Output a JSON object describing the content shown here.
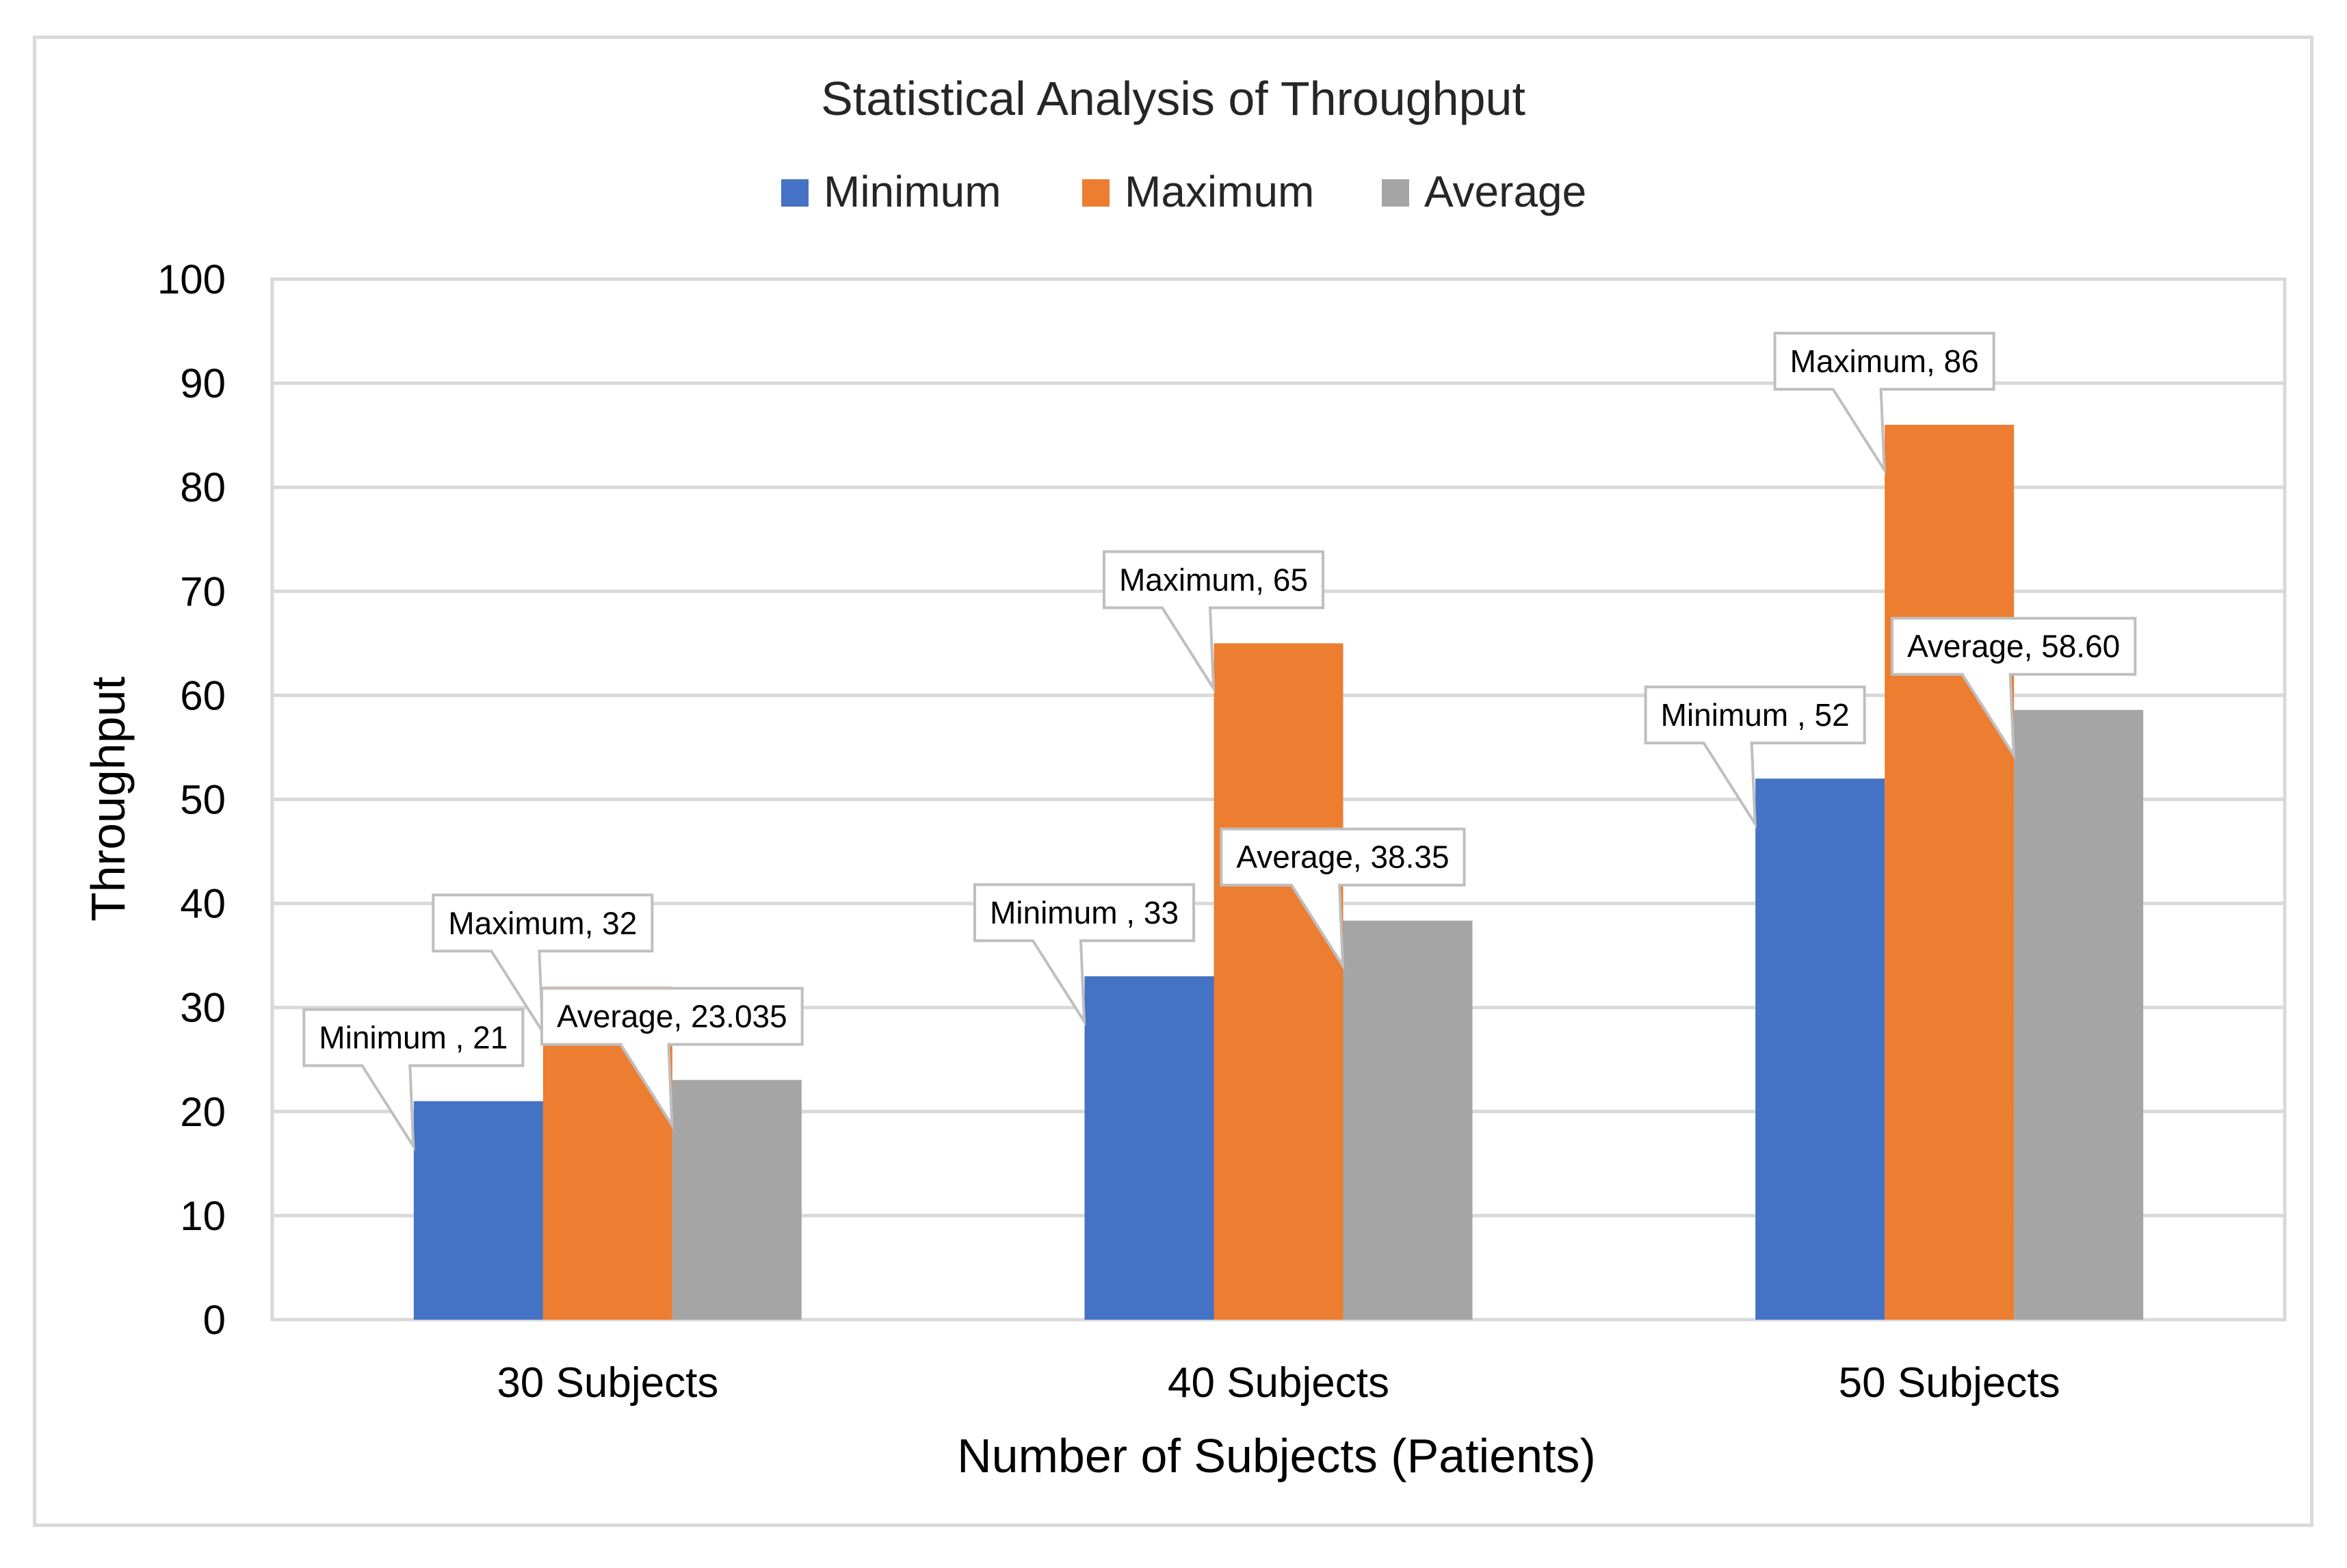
{
  "chart_data": {
    "type": "bar",
    "title": "Statistical Analysis of Throughput",
    "xlabel": "Number of Subjects (Patients)",
    "ylabel": "Throughput",
    "ylim": [
      0,
      100
    ],
    "yticks": [
      "0",
      "10",
      "20",
      "30",
      "40",
      "50",
      "60",
      "70",
      "80",
      "90",
      "100"
    ],
    "categories": [
      "30 Subjects",
      "40 Subjects",
      "50 Subjects"
    ],
    "grid": true,
    "legend_position": "top",
    "series": [
      {
        "name": "Minimum",
        "color": "#4472c4",
        "values": [
          21,
          33,
          52
        ],
        "labels": [
          "Minimum , 21",
          "Minimum , 33",
          "Minimum , 52"
        ]
      },
      {
        "name": "Maximum",
        "color": "#ed7d31",
        "values": [
          32,
          65,
          86
        ],
        "labels": [
          "Maximum, 32",
          "Maximum, 65",
          "Maximum, 86"
        ]
      },
      {
        "name": "Average",
        "color": "#a5a5a5",
        "values": [
          23.035,
          38.35,
          58.6
        ],
        "labels": [
          "Average, 23.035",
          "Average, 38.35",
          "Average, 58.60"
        ]
      }
    ]
  }
}
